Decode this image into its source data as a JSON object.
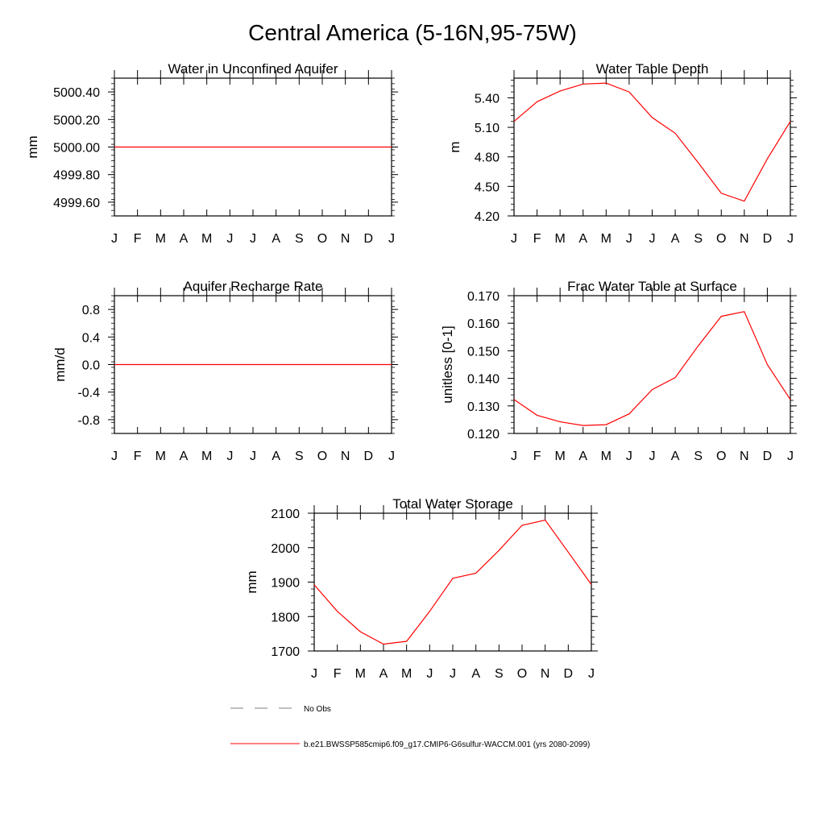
{
  "figure_title": "Central America (5-16N,95-75W)",
  "colors": {
    "model_line": "#ff0000",
    "obs_line": "#808080",
    "axes": "#000000"
  },
  "legend": {
    "entries": [
      {
        "label": "No Obs",
        "style": "dashed",
        "color": "#808080"
      },
      {
        "label": "b.e21.BWSSP585cmip6.f09_g17.CMIP6-G6sulfur-WACCM.001 (yrs 2080-2099)",
        "style": "solid",
        "color": "#ff0000"
      }
    ]
  },
  "chart_data": [
    {
      "id": "aquifer",
      "type": "line",
      "title": "Water in Unconfined Aquifer",
      "ylabel": "mm",
      "xlabel": "",
      "categories": [
        "J",
        "F",
        "M",
        "A",
        "M",
        "J",
        "J",
        "A",
        "S",
        "O",
        "N",
        "D",
        "J"
      ],
      "ylim": [
        4999.5,
        5000.5
      ],
      "yticks": [
        4999.6,
        4999.8,
        5000.0,
        5000.2,
        5000.4
      ],
      "ytick_labels": [
        "4999.60",
        "4999.80",
        "5000.00",
        "5000.20",
        "5000.40"
      ],
      "series": [
        {
          "values": [
            5000,
            5000,
            5000,
            5000,
            5000,
            5000,
            5000,
            5000,
            5000,
            5000,
            5000,
            5000,
            5000
          ]
        }
      ]
    },
    {
      "id": "wtd",
      "type": "line",
      "title": "Water Table Depth",
      "ylabel": "m",
      "xlabel": "",
      "categories": [
        "J",
        "F",
        "M",
        "A",
        "M",
        "J",
        "J",
        "A",
        "S",
        "O",
        "N",
        "D",
        "J"
      ],
      "ylim": [
        4.2,
        5.6
      ],
      "yticks": [
        4.2,
        4.5,
        4.8,
        5.1,
        5.4
      ],
      "ytick_labels": [
        "4.20",
        "4.50",
        "4.80",
        "5.10",
        "5.40"
      ],
      "series": [
        {
          "values": [
            5.16,
            5.36,
            5.47,
            5.54,
            5.55,
            5.46,
            5.2,
            5.04,
            4.74,
            4.43,
            4.35,
            4.78,
            5.16
          ]
        }
      ]
    },
    {
      "id": "recharge",
      "type": "line",
      "title": "Aquifer Recharge Rate",
      "ylabel": "mm/d",
      "xlabel": "",
      "categories": [
        "J",
        "F",
        "M",
        "A",
        "M",
        "J",
        "J",
        "A",
        "S",
        "O",
        "N",
        "D",
        "J"
      ],
      "ylim": [
        -1.0,
        1.0
      ],
      "yticks": [
        -0.8,
        -0.4,
        0.0,
        0.4,
        0.8
      ],
      "ytick_labels": [
        "-0.8",
        "-0.4",
        "0.0",
        "0.4",
        "0.8"
      ],
      "series": [
        {
          "values": [
            0,
            0,
            0,
            0,
            0,
            0,
            0,
            0,
            0,
            0,
            0,
            0,
            0
          ]
        }
      ]
    },
    {
      "id": "fracwt",
      "type": "line",
      "title": "Frac Water Table at Surface",
      "ylabel": "unitless [0-1]",
      "xlabel": "",
      "categories": [
        "J",
        "F",
        "M",
        "A",
        "M",
        "J",
        "J",
        "A",
        "S",
        "O",
        "N",
        "D",
        "J"
      ],
      "ylim": [
        0.12,
        0.17
      ],
      "yticks": [
        0.12,
        0.13,
        0.14,
        0.15,
        0.16,
        0.17
      ],
      "ytick_labels": [
        "0.120",
        "0.130",
        "0.140",
        "0.150",
        "0.160",
        "0.170"
      ],
      "series": [
        {
          "values": [
            0.1323,
            0.1266,
            0.1242,
            0.1229,
            0.1232,
            0.1271,
            0.1359,
            0.1403,
            0.1518,
            0.1625,
            0.1642,
            0.145,
            0.1323
          ]
        }
      ]
    },
    {
      "id": "tws",
      "type": "line",
      "title": "Total Water Storage",
      "ylabel": "mm",
      "xlabel": "",
      "categories": [
        "J",
        "F",
        "M",
        "A",
        "M",
        "J",
        "J",
        "A",
        "S",
        "O",
        "N",
        "D",
        "J"
      ],
      "ylim": [
        1700,
        2100
      ],
      "yticks": [
        1700,
        1800,
        1900,
        2000,
        2100
      ],
      "ytick_labels": [
        "1700",
        "1800",
        "1900",
        "2000",
        "2100"
      ],
      "series": [
        {
          "values": [
            1892,
            1815,
            1756,
            1720,
            1728,
            1815,
            1911,
            1926,
            1992,
            2065,
            2080,
            1987,
            1893
          ]
        }
      ]
    }
  ]
}
